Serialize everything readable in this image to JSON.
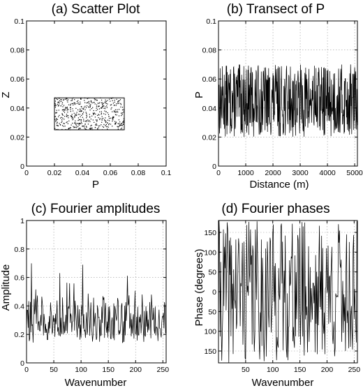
{
  "chart_data": [
    {
      "panel": "a",
      "type": "scatter",
      "title": "(a) Scatter Plot",
      "xlabel": "P",
      "ylabel": "Z",
      "xlim": [
        0,
        0.1
      ],
      "ylim": [
        0,
        0.1
      ],
      "xticks": [
        "0",
        "0.02",
        "0.04",
        "0.06",
        "0.08",
        "0.1"
      ],
      "yticks": [
        "0",
        "0.02",
        "0.04",
        "0.06",
        "0.08",
        "0.1"
      ],
      "grid": false,
      "series": [
        {
          "x_range": [
            0.02,
            0.07
          ],
          "y_range": [
            0.025,
            0.047
          ],
          "n_points": 520,
          "description_of_fill": "uniform random points inside a bounding rectangle"
        }
      ],
      "box": {
        "x": [
          0.02,
          0.07
        ],
        "y": [
          0.025,
          0.047
        ]
      }
    },
    {
      "panel": "b",
      "type": "line",
      "title": "(b) Transect of P",
      "xlabel": "Distance (m)",
      "ylabel": "P",
      "xlim": [
        0,
        5100
      ],
      "ylim": [
        0,
        0.1
      ],
      "xticks": [
        "0",
        "1000",
        "2000",
        "3000",
        "4000",
        "5000"
      ],
      "yticks": [
        "0",
        "0.02",
        "0.04",
        "0.06",
        "0.08",
        "0.1"
      ],
      "grid": true,
      "series": [
        {
          "y_range": [
            0.02,
            0.07
          ],
          "n_points": 512,
          "x_step": 10,
          "mean": 0.045
        }
      ]
    },
    {
      "panel": "c",
      "type": "line",
      "title": "(c) Fourier amplitudes",
      "xlabel": "Wavenumber",
      "ylabel": "Amplitude",
      "xlim": [
        0,
        256
      ],
      "ylim": [
        0,
        1
      ],
      "xticks": [
        "0",
        "50",
        "100",
        "150",
        "200",
        "250"
      ],
      "yticks": [
        "0",
        "0.2",
        "0.4",
        "0.6",
        "0.8",
        "1"
      ],
      "grid": true,
      "series": [
        {
          "n_points": 256,
          "y_range": [
            0.1,
            0.85
          ],
          "mean": 0.3
        }
      ]
    },
    {
      "panel": "d",
      "type": "line",
      "title": "(d) Fourier phases",
      "xlabel": "Wavenumber",
      "ylabel": "Phase (degrees)",
      "xlim": [
        0,
        256
      ],
      "ylim": [
        -180,
        180
      ],
      "xticks": [
        "50",
        "100",
        "150",
        "200",
        "250"
      ],
      "yticks": [
        "150",
        "100",
        "50",
        "0",
        "50",
        "100",
        "150"
      ],
      "grid": true,
      "series": [
        {
          "n_points": 256,
          "y_range": [
            -180,
            180
          ]
        }
      ]
    }
  ]
}
